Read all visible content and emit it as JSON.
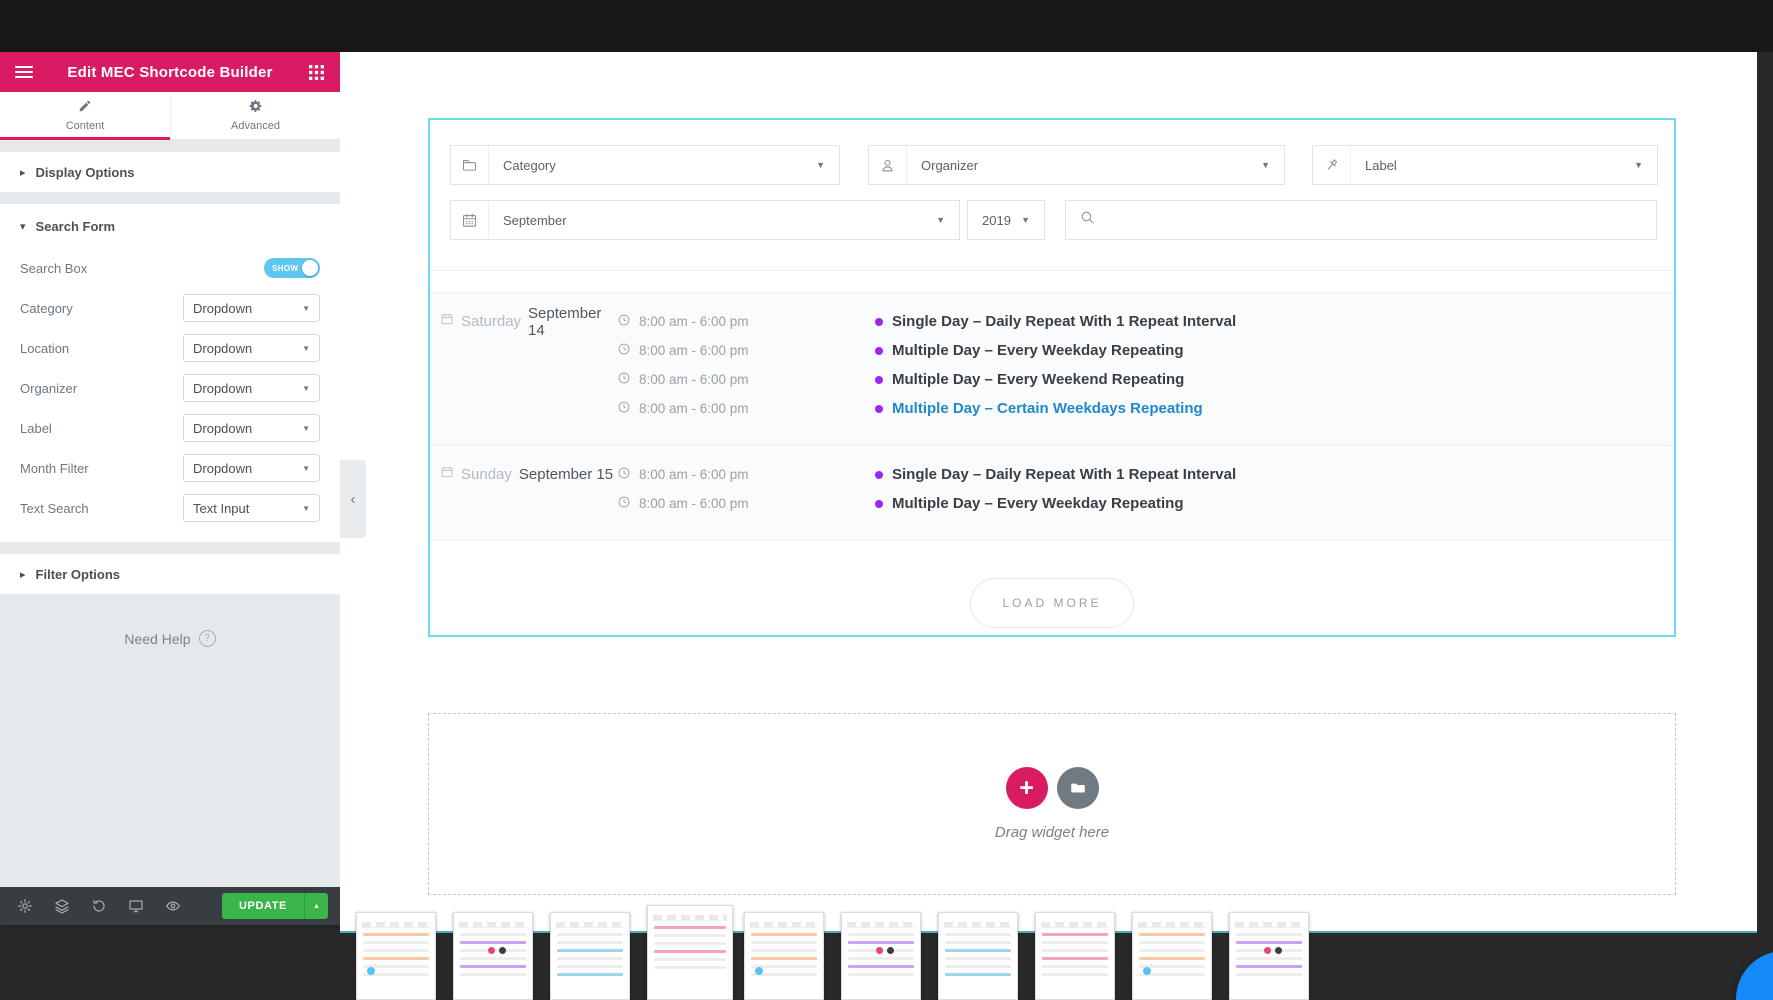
{
  "colors": {
    "accent_pink": "#d81b62",
    "panel_bg": "#e6e9ec",
    "toggle_blue": "#5fc6ef",
    "selection_border_blue": "#71d7f7",
    "update_green": "#39b54a",
    "event_dot_purple": "#9b27f0",
    "event_link_blue": "#2089c9",
    "chat_bubble_blue": "#1689f8",
    "toolbar_dark": "#383d42"
  },
  "panel": {
    "title": "Edit MEC Shortcode Builder",
    "tabs": [
      {
        "label": "Content"
      },
      {
        "label": "Advanced"
      }
    ],
    "sections": {
      "display_options": "Display Options",
      "search_form": "Search Form",
      "filter_options": "Filter Options"
    },
    "fields": [
      {
        "label": "Search Box",
        "control": "toggle",
        "value": "SHOW"
      },
      {
        "label": "Category",
        "control": "select",
        "value": "Dropdown"
      },
      {
        "label": "Location",
        "control": "select",
        "value": "Dropdown"
      },
      {
        "label": "Organizer",
        "control": "select",
        "value": "Dropdown"
      },
      {
        "label": "Label",
        "control": "select",
        "value": "Dropdown"
      },
      {
        "label": "Month Filter",
        "control": "select",
        "value": "Dropdown"
      },
      {
        "label": "Text Search",
        "control": "select",
        "value": "Text Input"
      }
    ],
    "need_help": "Need Help",
    "toolbar": {
      "update_label": "UPDATE"
    }
  },
  "preview": {
    "search_form": {
      "category": "Category",
      "organizer": "Organizer",
      "label": "Label",
      "month": "September",
      "year": "2019",
      "search_value": ""
    },
    "days": [
      {
        "weekday": "Saturday",
        "date": "September 14",
        "events": [
          {
            "time": "8:00 am - 6:00 pm",
            "title": "Single Day – Daily Repeat With 1 Repeat Interval",
            "highlight": false
          },
          {
            "time": "8:00 am - 6:00 pm",
            "title": "Multiple Day – Every Weekday Repeating",
            "highlight": false
          },
          {
            "time": "8:00 am - 6:00 pm",
            "title": "Multiple Day – Every Weekend Repeating",
            "highlight": false
          },
          {
            "time": "8:00 am - 6:00 pm",
            "title": "Multiple Day – Certain Weekdays Repeating",
            "highlight": true
          }
        ]
      },
      {
        "weekday": "Sunday",
        "date": "September 15",
        "events": [
          {
            "time": "8:00 am - 6:00 pm",
            "title": "Single Day – Daily Repeat With 1 Repeat Interval",
            "highlight": false
          },
          {
            "time": "8:00 am - 6:00 pm",
            "title": "Multiple Day – Every Weekday Repeating",
            "highlight": false
          }
        ]
      }
    ],
    "load_more": "LOAD MORE",
    "drag_hint": "Drag widget here"
  },
  "thumbnails": {
    "count": 10,
    "tall_index": 3
  }
}
